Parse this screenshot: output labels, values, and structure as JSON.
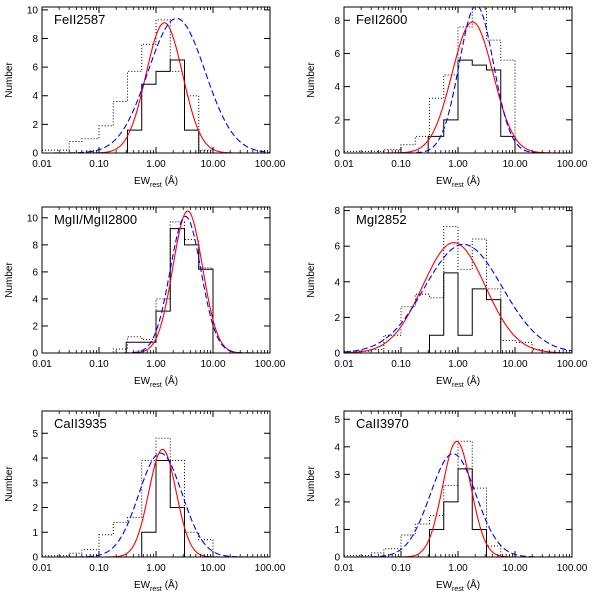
{
  "chart_data": [
    {
      "type": "line",
      "title": "FeII2587",
      "xlabel_main": "EW",
      "xlabel_sub": "rest",
      "xlabel_unit": "(Å)",
      "ylabel": "Number",
      "xscale": "log",
      "xlim": [
        0.01,
        100
      ],
      "ylim": [
        0,
        10.2
      ],
      "xticks": [
        0.01,
        0.1,
        1,
        10,
        100
      ],
      "xtick_labels": [
        "0.01",
        "0.10",
        "1.00",
        "10.00",
        "100.00"
      ],
      "yticks": [
        0,
        2,
        4,
        6,
        8,
        10
      ],
      "ytick_labels": [
        "0",
        "2",
        "4",
        "6",
        "8",
        "10"
      ],
      "series": [
        {
          "name": "solid-histogram",
          "kind": "step",
          "color": "#000000",
          "dash": "none",
          "edges": [
            0.01,
            0.1,
            0.316,
            0.562,
            1.0,
            1.778,
            3.162,
            5.623,
            10,
            100
          ],
          "values": [
            0,
            0,
            1.6,
            4.8,
            5.7,
            6.5,
            1.6,
            0,
            0
          ]
        },
        {
          "name": "dotted-histogram",
          "kind": "step",
          "color": "#000000",
          "dash": "1,2",
          "edges": [
            0.01,
            0.03,
            0.05,
            0.1,
            0.178,
            0.316,
            0.562,
            1.0,
            1.778,
            3.162,
            5.623,
            10,
            100
          ],
          "values": [
            0.2,
            0.8,
            1.0,
            1.9,
            3.6,
            5.7,
            7.6,
            9.3,
            5.7,
            4.0,
            0.2,
            0
          ]
        },
        {
          "name": "red-gaussian-fit",
          "kind": "curve",
          "color": "#ff0000",
          "dash": "none",
          "amp": 9.1,
          "mu": 1.4,
          "sigma": 0.32,
          "offset": 0
        },
        {
          "name": "blue-dashed-fit",
          "kind": "curve",
          "color": "#0000ff",
          "dash": "6,3",
          "amp": 9.4,
          "mu": 2.3,
          "sigma": 0.5,
          "offset": 0
        }
      ]
    },
    {
      "type": "line",
      "title": "FeII2600",
      "xlabel_main": "EW",
      "xlabel_sub": "rest",
      "xlabel_unit": "(Å)",
      "ylabel": "Number",
      "xscale": "log",
      "xlim": [
        0.01,
        100
      ],
      "ylim": [
        0,
        8.8
      ],
      "xticks": [
        0.01,
        0.1,
        1,
        10,
        100
      ],
      "xtick_labels": [
        "0.01",
        "0.10",
        "1.00",
        "10.00",
        "100.00"
      ],
      "yticks": [
        0,
        2,
        4,
        6,
        8
      ],
      "ytick_labels": [
        "0",
        "2",
        "4",
        "6",
        "8"
      ],
      "series": [
        {
          "name": "solid-histogram",
          "kind": "step",
          "color": "#000000",
          "dash": "none",
          "edges": [
            0.01,
            0.3,
            0.562,
            1.0,
            1.778,
            3.162,
            5.623,
            10,
            100
          ],
          "values": [
            0,
            1.0,
            2.0,
            5.6,
            5.3,
            5.0,
            1.0,
            0
          ]
        },
        {
          "name": "dotted-histogram",
          "kind": "step",
          "color": "#000000",
          "dash": "1,2",
          "edges": [
            0.01,
            0.05,
            0.1,
            0.178,
            0.316,
            0.562,
            1.0,
            1.778,
            3.162,
            5.623,
            10,
            100
          ],
          "values": [
            0.1,
            0.2,
            0.5,
            1.0,
            3.3,
            4.7,
            7.6,
            8.8,
            6.8,
            5.6,
            0
          ]
        },
        {
          "name": "red-gaussian-fit",
          "kind": "curve",
          "color": "#ff0000",
          "dash": "none",
          "amp": 7.9,
          "mu": 1.8,
          "sigma": 0.36,
          "offset": 0
        },
        {
          "name": "blue-dashed-fit",
          "kind": "curve",
          "color": "#0000ff",
          "dash": "6,3",
          "amp": 8.9,
          "mu": 2.1,
          "sigma": 0.3,
          "offset": 0
        }
      ]
    },
    {
      "type": "line",
      "title": "MgII/MgII2800",
      "xlabel_main": "EW",
      "xlabel_sub": "rest",
      "xlabel_unit": "(Å)",
      "ylabel": "Number",
      "xscale": "log",
      "xlim": [
        0.01,
        100
      ],
      "ylim": [
        0,
        10.8
      ],
      "xticks": [
        0.01,
        0.1,
        1,
        10,
        100
      ],
      "xtick_labels": [
        "0.01",
        "0.10",
        "1.00",
        "10.00",
        "100.00"
      ],
      "yticks": [
        0,
        2,
        4,
        6,
        8,
        10
      ],
      "ytick_labels": [
        "0",
        "2",
        "4",
        "6",
        "8",
        "10"
      ],
      "series": [
        {
          "name": "solid-histogram",
          "kind": "step",
          "color": "#000000",
          "dash": "none",
          "edges": [
            0.01,
            0.3,
            0.562,
            1.0,
            1.778,
            3.162,
            5.623,
            10,
            100
          ],
          "values": [
            0,
            0.8,
            0.8,
            3.1,
            9.2,
            8.0,
            6.2,
            0
          ]
        },
        {
          "name": "dotted-histogram",
          "kind": "step",
          "color": "#000000",
          "dash": "1,2",
          "edges": [
            0.01,
            0.178,
            0.316,
            0.562,
            1.0,
            1.778,
            3.162,
            5.623,
            10,
            100
          ],
          "values": [
            0,
            0.3,
            1.2,
            1.0,
            4.0,
            9.7,
            8.4,
            6.3,
            0
          ]
        },
        {
          "name": "red-gaussian-fit",
          "kind": "curve",
          "color": "#ff0000",
          "dash": "none",
          "amp": 10.5,
          "mu": 3.6,
          "sigma": 0.26,
          "offset": 0
        },
        {
          "name": "blue-dashed-fit",
          "kind": "curve",
          "color": "#0000ff",
          "dash": "6,3",
          "amp": 10.1,
          "mu": 3.3,
          "sigma": 0.27,
          "offset": 0
        }
      ]
    },
    {
      "type": "line",
      "title": "MgI2852",
      "xlabel_main": "EW",
      "xlabel_sub": "rest",
      "xlabel_unit": "(Å)",
      "ylabel": "Number",
      "xscale": "log",
      "xlim": [
        0.01,
        100
      ],
      "ylim": [
        0,
        8.2
      ],
      "xticks": [
        0.01,
        0.1,
        1,
        10,
        100
      ],
      "xtick_labels": [
        "0.01",
        "0.10",
        "1.00",
        "10.00",
        "100.00"
      ],
      "yticks": [
        0,
        2,
        4,
        6,
        8
      ],
      "ytick_labels": [
        "0",
        "2",
        "4",
        "6",
        "8"
      ],
      "series": [
        {
          "name": "solid-histogram",
          "kind": "step",
          "color": "#000000",
          "dash": "none",
          "edges": [
            0.01,
            0.316,
            0.562,
            1.0,
            1.778,
            3.162,
            5.623,
            10,
            100
          ],
          "values": [
            0,
            1.0,
            4.5,
            1.0,
            3.6,
            3.0,
            0,
            0
          ]
        },
        {
          "name": "dotted-histogram",
          "kind": "step",
          "color": "#000000",
          "dash": "1,2",
          "edges": [
            0.01,
            0.03,
            0.05,
            0.1,
            0.178,
            0.316,
            0.562,
            1.0,
            1.778,
            3.162,
            5.623,
            10,
            20,
            30,
            100
          ],
          "values": [
            0.1,
            0.2,
            1.0,
            2.6,
            3.3,
            3.1,
            7.1,
            4.7,
            6.4,
            3.6,
            0.7,
            0.6,
            0.2,
            0
          ]
        },
        {
          "name": "red-gaussian-fit",
          "kind": "curve",
          "color": "#ff0000",
          "dash": "none",
          "amp": 6.2,
          "mu": 0.85,
          "sigma": 0.55,
          "offset": 0
        },
        {
          "name": "blue-dashed-fit",
          "kind": "curve",
          "color": "#0000ff",
          "dash": "6,3",
          "amp": 6.1,
          "mu": 1.25,
          "sigma": 0.68,
          "offset": 0
        }
      ]
    },
    {
      "type": "line",
      "title": "CaII3935",
      "xlabel_main": "EW",
      "xlabel_sub": "rest",
      "xlabel_unit": "(Å)",
      "ylabel": "Number",
      "xscale": "log",
      "xlim": [
        0.01,
        100
      ],
      "ylim": [
        0,
        5.9
      ],
      "xticks": [
        0.01,
        0.1,
        1,
        10,
        100
      ],
      "xtick_labels": [
        "0.01",
        "0.10",
        "1.00",
        "10.00",
        "100.00"
      ],
      "yticks": [
        0,
        1,
        2,
        3,
        4,
        5
      ],
      "ytick_labels": [
        "0",
        "1",
        "2",
        "3",
        "4",
        "5"
      ],
      "series": [
        {
          "name": "solid-histogram",
          "kind": "step",
          "color": "#000000",
          "dash": "none",
          "edges": [
            0.01,
            0.562,
            1.0,
            1.778,
            3.162,
            100
          ],
          "values": [
            0,
            1.0,
            3.9,
            2.0,
            0
          ]
        },
        {
          "name": "dotted-histogram",
          "kind": "step",
          "color": "#000000",
          "dash": "1,2",
          "edges": [
            0.01,
            0.03,
            0.05,
            0.1,
            0.178,
            0.316,
            0.562,
            1.0,
            1.778,
            3.162,
            5.623,
            10,
            100
          ],
          "values": [
            0.05,
            0.15,
            0.3,
            0.9,
            1.4,
            1.6,
            3.9,
            4.8,
            3.9,
            1.0,
            0.7,
            0
          ]
        },
        {
          "name": "red-gaussian-fit",
          "kind": "curve",
          "color": "#ff0000",
          "dash": "none",
          "amp": 4.35,
          "mu": 1.3,
          "sigma": 0.24,
          "offset": 0
        },
        {
          "name": "blue-dashed-fit",
          "kind": "curve",
          "color": "#0000ff",
          "dash": "6,3",
          "amp": 4.2,
          "mu": 1.2,
          "sigma": 0.38,
          "offset": 0
        }
      ]
    },
    {
      "type": "line",
      "title": "CaII3970",
      "xlabel_main": "EW",
      "xlabel_sub": "rest",
      "xlabel_unit": "(Å)",
      "ylabel": "Number",
      "xscale": "log",
      "xlim": [
        0.01,
        100
      ],
      "ylim": [
        0,
        5.3
      ],
      "xticks": [
        0.01,
        0.1,
        1,
        10,
        100
      ],
      "xtick_labels": [
        "0.01",
        "0.10",
        "1.00",
        "10.00",
        "100.00"
      ],
      "yticks": [
        0,
        1,
        2,
        3,
        4,
        5
      ],
      "ytick_labels": [
        "0",
        "1",
        "2",
        "3",
        "4",
        "5"
      ],
      "series": [
        {
          "name": "solid-histogram",
          "kind": "step",
          "color": "#000000",
          "dash": "none",
          "edges": [
            0.01,
            0.316,
            0.562,
            1.0,
            1.778,
            3.162,
            100
          ],
          "values": [
            0,
            1.0,
            2.0,
            3.2,
            1.0,
            0
          ]
        },
        {
          "name": "dotted-histogram",
          "kind": "step",
          "color": "#000000",
          "dash": "1,2",
          "edges": [
            0.01,
            0.03,
            0.05,
            0.1,
            0.178,
            0.316,
            0.562,
            1.0,
            1.778,
            3.162,
            5.623,
            100
          ],
          "values": [
            0.05,
            0.15,
            0.3,
            0.8,
            1.2,
            1.5,
            2.6,
            4.2,
            2.5,
            0.4,
            0
          ]
        },
        {
          "name": "red-gaussian-fit",
          "kind": "curve",
          "color": "#ff0000",
          "dash": "none",
          "amp": 4.2,
          "mu": 0.95,
          "sigma": 0.25,
          "offset": 0
        },
        {
          "name": "blue-dashed-fit",
          "kind": "curve",
          "color": "#0000ff",
          "dash": "6,3",
          "amp": 3.75,
          "mu": 0.82,
          "sigma": 0.4,
          "offset": 0
        }
      ]
    }
  ]
}
